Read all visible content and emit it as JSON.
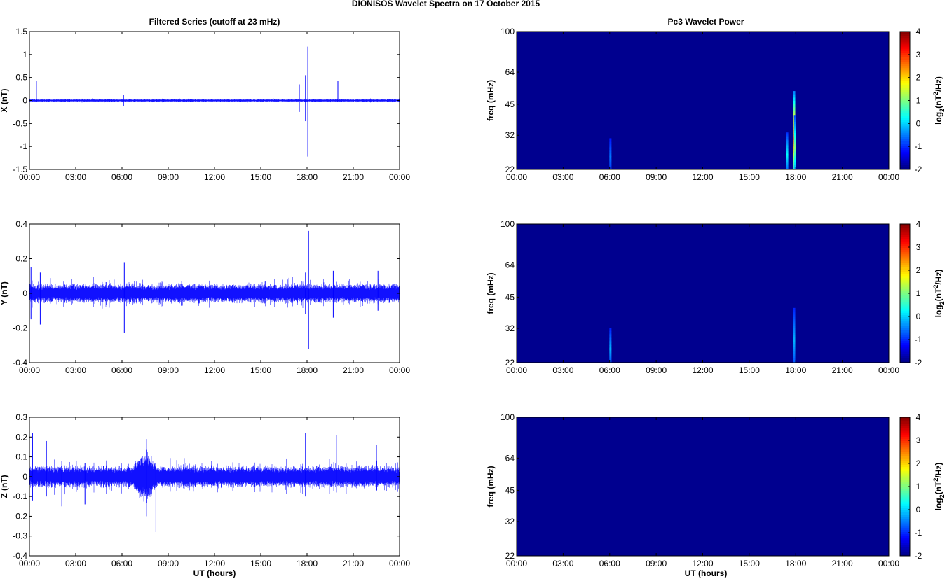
{
  "figure_title": "DIONISOS Wavelet Spectra on 17 October   2015",
  "left_column_title": "Filtered Series (cutoff at 23 mHz)",
  "right_column_title": "Pc3 Wavelet Power",
  "x_axis_label": "UT (hours)",
  "time_ticks": [
    "00:00",
    "03:00",
    "06:00",
    "09:00",
    "12:00",
    "15:00",
    "18:00",
    "21:00",
    "00:00"
  ],
  "colors": {
    "trace": "#0000ff",
    "background": "#00008f"
  },
  "colorbar": {
    "ticks": [
      "4",
      "3",
      "2",
      "1",
      "0",
      "-1",
      "-2"
    ],
    "range": [
      -2,
      4
    ],
    "colormap": "jet"
  },
  "chart_data": [
    {
      "type": "line",
      "name": "X component",
      "ylabel": "X (nT)",
      "ylim": [
        -1.5,
        1.5
      ],
      "yticks": [
        "1.5",
        "1",
        "0.5",
        "0",
        "-0.5",
        "-1",
        "-1.5"
      ],
      "xlim_hours": [
        0,
        24
      ],
      "noise_amplitude": 0.03,
      "spikes": [
        {
          "t": 0.45,
          "max": 0.42,
          "min": -0.03
        },
        {
          "t": 0.75,
          "max": 0.14,
          "min": -0.12
        },
        {
          "t": 6.1,
          "max": 0.12,
          "min": -0.12
        },
        {
          "t": 17.5,
          "max": 0.35,
          "min": -0.25
        },
        {
          "t": 17.9,
          "max": 0.55,
          "min": -0.45
        },
        {
          "t": 18.05,
          "max": 1.17,
          "min": -1.22
        },
        {
          "t": 18.25,
          "max": 0.15,
          "min": -0.15
        },
        {
          "t": 20.0,
          "max": 0.42,
          "min": -0.02
        }
      ]
    },
    {
      "type": "line",
      "name": "Y component",
      "ylabel": "Y (nT)",
      "ylim": [
        -0.4,
        0.4
      ],
      "yticks": [
        "0.4",
        "0.2",
        "0",
        "-0.2",
        "-0.4"
      ],
      "xlim_hours": [
        0,
        24
      ],
      "noise_amplitude": 0.06,
      "spikes": [
        {
          "t": 0.1,
          "max": 0.15,
          "min": -0.15
        },
        {
          "t": 0.7,
          "max": 0.12,
          "min": -0.18
        },
        {
          "t": 6.15,
          "max": 0.18,
          "min": -0.23
        },
        {
          "t": 17.9,
          "max": 0.12,
          "min": -0.12
        },
        {
          "t": 18.1,
          "max": 0.36,
          "min": -0.32
        },
        {
          "t": 19.7,
          "max": 0.13,
          "min": -0.14
        },
        {
          "t": 22.6,
          "max": 0.13,
          "min": -0.1
        }
      ]
    },
    {
      "type": "line",
      "name": "Z component",
      "ylabel": "Z (nT)",
      "ylim": [
        -0.4,
        0.3
      ],
      "yticks": [
        "0.3",
        "0.2",
        "0.1",
        "0",
        "-0.1",
        "-0.2",
        "-0.3",
        "-0.4"
      ],
      "xlim_hours": [
        0,
        24
      ],
      "noise_amplitude": 0.06,
      "burst": {
        "start": 6.8,
        "end": 8.2,
        "amplitude": 0.14
      },
      "spikes": [
        {
          "t": 0.2,
          "max": 0.22,
          "min": -0.12
        },
        {
          "t": 1.1,
          "max": 0.18,
          "min": -0.1
        },
        {
          "t": 2.1,
          "max": 0.08,
          "min": -0.15
        },
        {
          "t": 3.6,
          "max": 0.07,
          "min": -0.14
        },
        {
          "t": 7.6,
          "max": 0.19,
          "min": -0.2
        },
        {
          "t": 8.2,
          "max": 0.05,
          "min": -0.28
        },
        {
          "t": 17.9,
          "max": 0.22,
          "min": -0.1
        },
        {
          "t": 19.9,
          "max": 0.21,
          "min": -0.08
        },
        {
          "t": 22.5,
          "max": 0.16,
          "min": -0.07
        }
      ]
    },
    {
      "type": "heatmap",
      "name": "X wavelet power",
      "ylabel": "freq (mHz)",
      "yticks": [
        "100",
        "64",
        "45",
        "32",
        "22"
      ],
      "yscale": "log",
      "ylim_mHz": [
        22,
        100
      ],
      "colorbar_label": "log2(nT^2/Hz)",
      "features": [
        {
          "t": 6.05,
          "f_top": 31,
          "level": -1.2
        },
        {
          "t": 17.45,
          "f_top": 33,
          "level": -0.3
        },
        {
          "t": 17.9,
          "f_top": 52,
          "level": 2.9
        },
        {
          "t": 17.95,
          "f_top": 40,
          "level": 0.6
        }
      ]
    },
    {
      "type": "heatmap",
      "name": "Y wavelet power",
      "ylabel": "freq (mHz)",
      "yticks": [
        "100",
        "64",
        "45",
        "32",
        "22"
      ],
      "yscale": "log",
      "ylim_mHz": [
        22,
        100
      ],
      "colorbar_label": "log2(nT^2/Hz)",
      "features": [
        {
          "t": 6.05,
          "f_top": 32,
          "level": -0.8
        },
        {
          "t": 17.9,
          "f_top": 40,
          "level": -0.8
        }
      ]
    },
    {
      "type": "heatmap",
      "name": "Z wavelet power",
      "ylabel": "freq (mHz)",
      "yticks": [
        "100",
        "64",
        "45",
        "32",
        "22"
      ],
      "yscale": "log",
      "ylim_mHz": [
        22,
        100
      ],
      "colorbar_label": "log2(nT^2/Hz)",
      "features": []
    }
  ]
}
